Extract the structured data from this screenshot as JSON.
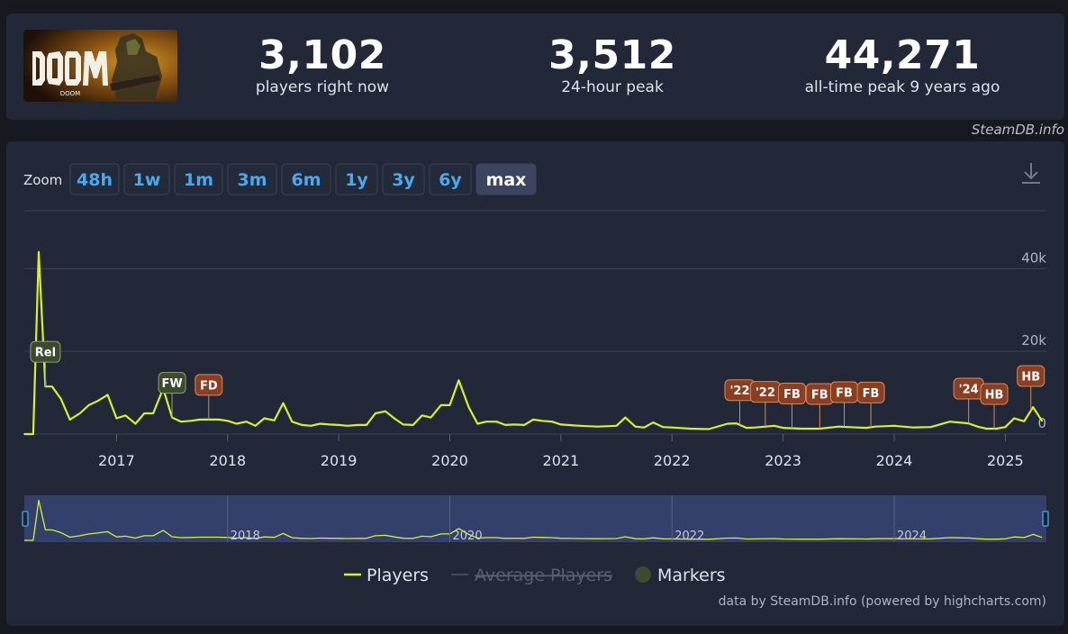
{
  "game": {
    "logo_text": "DOOM"
  },
  "stats": [
    {
      "value": "3,102",
      "label": "players right now"
    },
    {
      "value": "3,512",
      "label": "24-hour peak"
    },
    {
      "value": "44,271",
      "label": "all-time peak 9 years ago"
    }
  ],
  "credit_top": "SteamDB.info",
  "zoom": {
    "label": "Zoom",
    "buttons": [
      "48h",
      "1w",
      "1m",
      "3m",
      "6m",
      "1y",
      "3y",
      "6y",
      "max"
    ],
    "active": "max"
  },
  "legend": [
    "Players",
    "Average Players",
    "Markers"
  ],
  "credit_bottom": "data by SteamDB.info (powered by highcharts.com)",
  "colors": {
    "players_line": "#d6f02c",
    "marker_green": "#3e4a2e",
    "marker_brown": "#8a3e22",
    "background": "#222838",
    "navigator_fill": "#33406b"
  },
  "chart_data": {
    "type": "line",
    "title": "",
    "xlabel": "",
    "ylabel": "",
    "x_ticks": [
      "2017",
      "2018",
      "2019",
      "2020",
      "2021",
      "2022",
      "2023",
      "2024",
      "2025"
    ],
    "y_ticks": [
      "0",
      "20k",
      "40k"
    ],
    "ylim": [
      0,
      54000
    ],
    "xlim": [
      2016.17,
      2025.37
    ],
    "grid": true,
    "legend_position": "bottom",
    "series": [
      {
        "name": "Players",
        "color": "#d6f02c",
        "x": [
          2016.17,
          2016.25,
          2016.3,
          2016.36,
          2016.42,
          2016.5,
          2016.58,
          2016.67,
          2016.75,
          2016.83,
          2016.92,
          2017.0,
          2017.08,
          2017.17,
          2017.25,
          2017.33,
          2017.42,
          2017.5,
          2017.58,
          2017.67,
          2017.75,
          2017.83,
          2017.92,
          2018.0,
          2018.08,
          2018.17,
          2018.25,
          2018.33,
          2018.42,
          2018.5,
          2018.58,
          2018.67,
          2018.75,
          2018.83,
          2018.92,
          2019.0,
          2019.08,
          2019.17,
          2019.25,
          2019.33,
          2019.42,
          2019.5,
          2019.58,
          2019.67,
          2019.75,
          2019.83,
          2019.92,
          2020.0,
          2020.08,
          2020.17,
          2020.25,
          2020.33,
          2020.42,
          2020.5,
          2020.58,
          2020.67,
          2020.75,
          2020.83,
          2020.92,
          2021.0,
          2021.17,
          2021.33,
          2021.5,
          2021.58,
          2021.67,
          2021.75,
          2021.83,
          2021.92,
          2022.0,
          2022.17,
          2022.33,
          2022.5,
          2022.58,
          2022.67,
          2022.75,
          2022.92,
          2023.0,
          2023.17,
          2023.33,
          2023.5,
          2023.67,
          2023.75,
          2023.83,
          2024.0,
          2024.17,
          2024.33,
          2024.5,
          2024.58,
          2024.67,
          2024.75,
          2024.83,
          2024.92,
          2025.0,
          2025.08,
          2025.17,
          2025.25,
          2025.33
        ],
        "values": [
          0,
          0,
          44000,
          11500,
          11500,
          8500,
          3500,
          5000,
          7000,
          8000,
          9500,
          3800,
          4500,
          2500,
          5000,
          5000,
          11000,
          4000,
          3000,
          3200,
          3500,
          3500,
          3500,
          3200,
          2500,
          3000,
          2000,
          3800,
          3300,
          7500,
          3000,
          2200,
          2000,
          2500,
          2300,
          2200,
          2000,
          2200,
          2200,
          5000,
          5500,
          3800,
          2300,
          2200,
          4500,
          4000,
          7000,
          7000,
          13000,
          6500,
          2500,
          3000,
          3000,
          2200,
          2300,
          2200,
          3500,
          3200,
          3000,
          2300,
          2000,
          1800,
          2000,
          4000,
          1800,
          1600,
          2800,
          1700,
          1600,
          1300,
          1200,
          2500,
          2600,
          1500,
          1600,
          2000,
          1500,
          1300,
          1300,
          1800,
          1600,
          1500,
          1800,
          2000,
          1600,
          1700,
          3000,
          2800,
          2600,
          1800,
          1300,
          1300,
          1700,
          3800,
          3100,
          6500,
          3200
        ]
      }
    ],
    "markers": [
      {
        "label": "Rel",
        "x": 2016.36,
        "style": "green"
      },
      {
        "label": "FW",
        "x": 2017.5,
        "style": "green"
      },
      {
        "label": "FD",
        "x": 2017.83,
        "style": "brown"
      },
      {
        "label": "'22",
        "x": 2022.61,
        "style": "brown"
      },
      {
        "label": "'22",
        "x": 2022.84,
        "style": "brown"
      },
      {
        "label": "FB",
        "x": 2023.08,
        "style": "brown"
      },
      {
        "label": "FB",
        "x": 2023.33,
        "style": "brown"
      },
      {
        "label": "FB",
        "x": 2023.55,
        "style": "brown"
      },
      {
        "label": "FB",
        "x": 2023.79,
        "style": "brown"
      },
      {
        "label": "'24",
        "x": 2024.67,
        "style": "brown"
      },
      {
        "label": "HB",
        "x": 2024.9,
        "style": "brown"
      },
      {
        "label": "HB",
        "x": 2025.23,
        "style": "brown"
      }
    ],
    "navigator_ticks": [
      "2018",
      "2020",
      "2022",
      "2024"
    ]
  }
}
